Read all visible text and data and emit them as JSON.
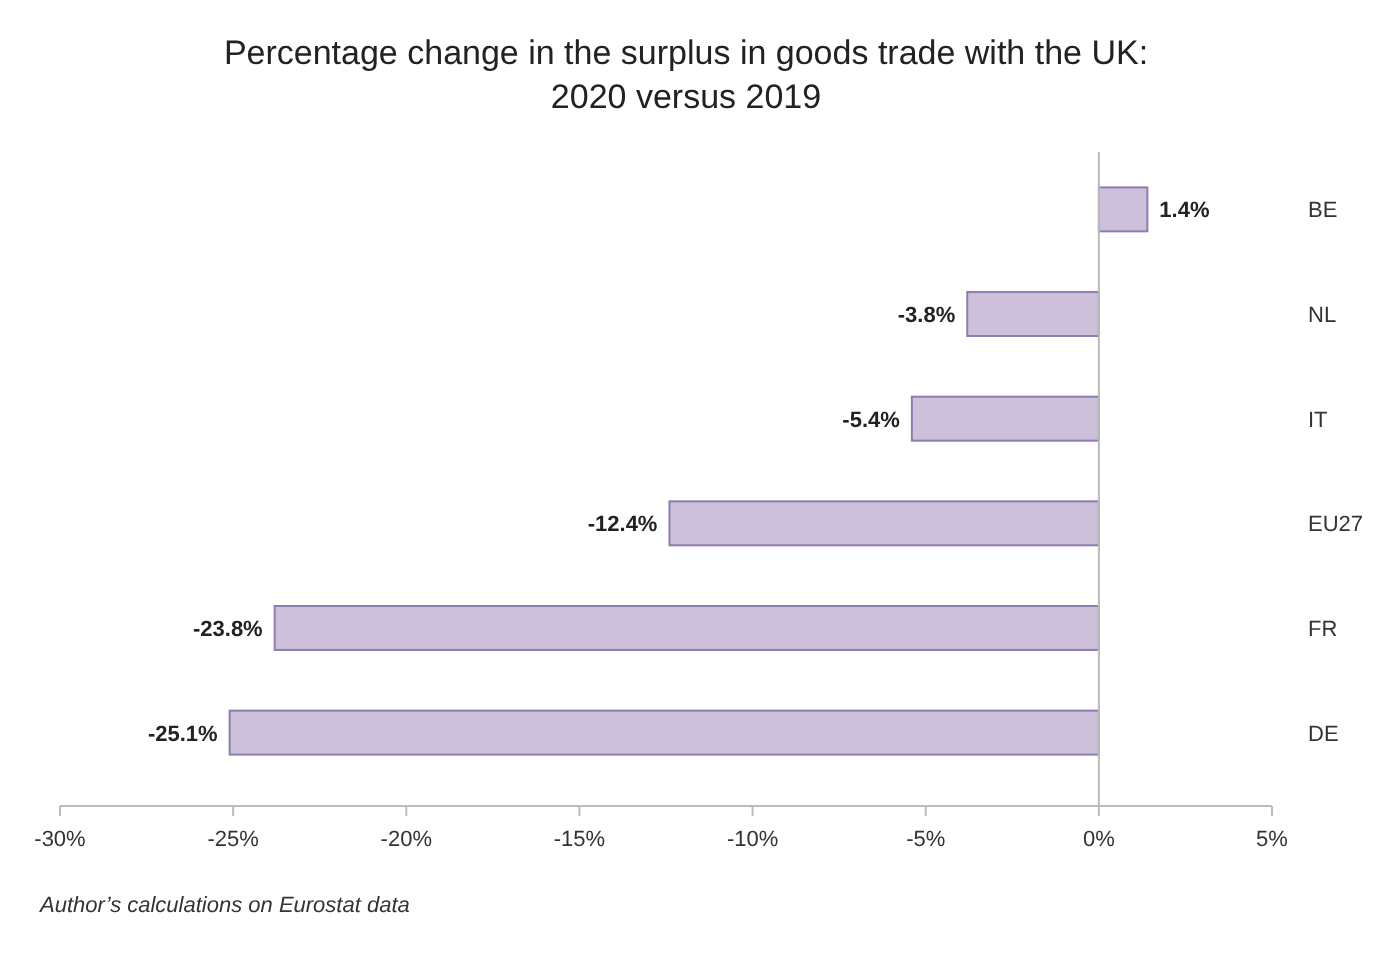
{
  "chart_data": {
    "type": "bar",
    "orientation": "horizontal",
    "title": "Percentage change in the surplus in goods trade with the UK: 2020 versus 2019",
    "categories": [
      "BE",
      "NL",
      "IT",
      "EU27",
      "FR",
      "DE"
    ],
    "values": [
      1.4,
      -3.8,
      -5.4,
      -12.4,
      -23.8,
      -25.1
    ],
    "value_labels": [
      "1.4%",
      "-3.8%",
      "-5.4%",
      "-12.4%",
      "-23.8%",
      "-25.1%"
    ],
    "color": "#ccc0da",
    "xlim": [
      -30,
      5
    ],
    "xticks": [
      {
        "value": -30,
        "label": "-30%"
      },
      {
        "value": -25,
        "label": "-25%"
      },
      {
        "value": -20,
        "label": "-20%"
      },
      {
        "value": -15,
        "label": "-15%"
      },
      {
        "value": -10,
        "label": "-10%"
      },
      {
        "value": -5,
        "label": "-5%"
      },
      {
        "value": 0,
        "label": "0%"
      },
      {
        "value": 5,
        "label": "5%"
      }
    ],
    "annotations": [
      "Author’s calculations on Eurostat data"
    ]
  }
}
